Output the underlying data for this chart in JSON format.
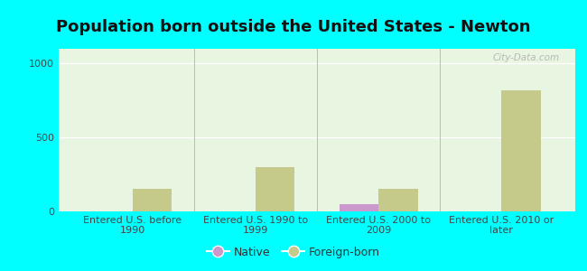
{
  "title": "Population born outside the United States - Newton",
  "categories": [
    "Entered U.S. before\n1990",
    "Entered U.S. 1990 to\n1999",
    "Entered U.S. 2000 to\n2009",
    "Entered U.S. 2010 or\nlater"
  ],
  "native_values": [
    0,
    0,
    50,
    2
  ],
  "foreign_values": [
    150,
    300,
    150,
    820
  ],
  "native_color": "#cc99cc",
  "foreign_color": "#c5c98a",
  "background_color": "#00ffff",
  "plot_bg_color": "#e8f5e0",
  "ylim": [
    0,
    1100
  ],
  "yticks": [
    0,
    500,
    1000
  ],
  "bar_width": 0.32,
  "title_fontsize": 13,
  "tick_fontsize": 8.0,
  "legend_fontsize": 9,
  "watermark": "City-Data.com"
}
